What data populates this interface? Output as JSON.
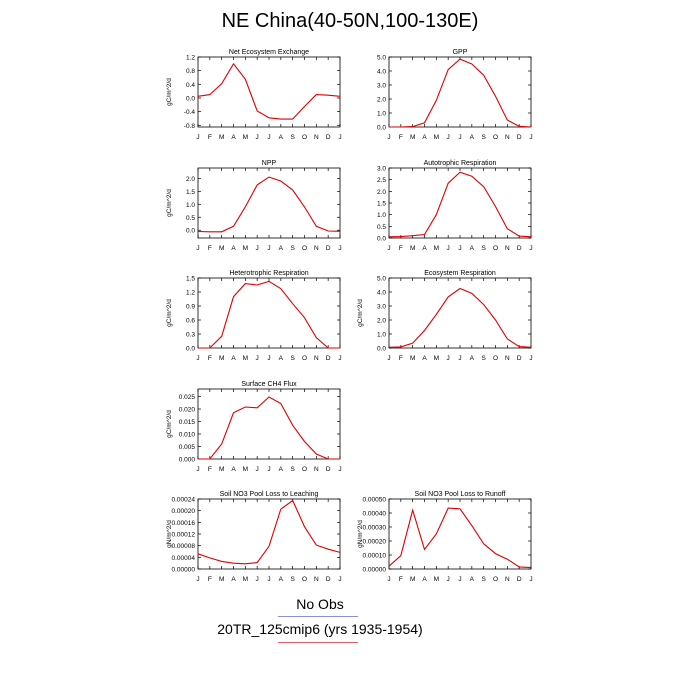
{
  "title": "NE China(40-50N,100-130E)",
  "legend": {
    "obs_label": "No Obs",
    "obs_color": "#8a8fd6",
    "run_label": "20TR_125cmip6 (yrs 1935-1954)",
    "run_color": "#e0606a"
  },
  "series_color": "#e00000",
  "chart_data": [
    {
      "type": "line",
      "title": "Net Ecosystem Exchange",
      "ylabel": "gC/m^2/d",
      "x": [
        "J",
        "F",
        "M",
        "A",
        "M",
        "J",
        "J",
        "A",
        "S",
        "O",
        "N",
        "D",
        "J"
      ],
      "values": [
        0.05,
        0.1,
        0.42,
        1.0,
        0.55,
        -0.38,
        -0.58,
        -0.62,
        -0.62,
        -0.25,
        0.1,
        0.08,
        0.05
      ],
      "ylim": [
        -0.85,
        1.2
      ],
      "yticks": [
        "1.2",
        "0.8",
        "0.4",
        "0.0",
        "-0.4",
        "-0.8"
      ],
      "ytick_values": [
        1.2,
        0.8,
        0.4,
        0.0,
        -0.4,
        -0.8
      ]
    },
    {
      "type": "line",
      "title": "GPP",
      "ylabel": "",
      "x": [
        "J",
        "F",
        "M",
        "A",
        "M",
        "J",
        "J",
        "A",
        "S",
        "O",
        "N",
        "D",
        "J"
      ],
      "values": [
        0.0,
        0.0,
        0.03,
        0.3,
        1.9,
        4.1,
        4.85,
        4.5,
        3.7,
        2.2,
        0.5,
        0.05,
        0.0
      ],
      "ylim": [
        0,
        5.0
      ],
      "yticks": [
        "5.0",
        "4.0",
        "3.0",
        "2.0",
        "1.0",
        "0.0"
      ],
      "ytick_values": [
        5.0,
        4.0,
        3.0,
        2.0,
        1.0,
        0.0
      ]
    },
    {
      "type": "line",
      "title": "NPP",
      "ylabel": "gC/m^2/d",
      "x": [
        "J",
        "F",
        "M",
        "A",
        "M",
        "J",
        "J",
        "A",
        "S",
        "O",
        "N",
        "D",
        "J"
      ],
      "values": [
        -0.05,
        -0.06,
        -0.06,
        0.15,
        0.9,
        1.75,
        2.05,
        1.9,
        1.55,
        0.9,
        0.15,
        -0.03,
        -0.04
      ],
      "ylim": [
        -0.3,
        2.4
      ],
      "yticks": [
        "2.0",
        "1.5",
        "1.0",
        "0.5",
        "0.0"
      ],
      "ytick_values": [
        2.0,
        1.5,
        1.0,
        0.5,
        0.0
      ]
    },
    {
      "type": "line",
      "title": "Autotrophic Respiration",
      "ylabel": "",
      "x": [
        "J",
        "F",
        "M",
        "A",
        "M",
        "J",
        "J",
        "A",
        "S",
        "O",
        "N",
        "D",
        "J"
      ],
      "values": [
        0.05,
        0.06,
        0.1,
        0.15,
        1.0,
        2.35,
        2.82,
        2.65,
        2.2,
        1.35,
        0.4,
        0.08,
        0.05
      ],
      "ylim": [
        0,
        3.0
      ],
      "yticks": [
        "3.0",
        "2.5",
        "2.0",
        "1.5",
        "1.0",
        "0.5",
        "0.0"
      ],
      "ytick_values": [
        3.0,
        2.5,
        2.0,
        1.5,
        1.0,
        0.5,
        0.0
      ]
    },
    {
      "type": "line",
      "title": "Heterotrophic Respiration",
      "ylabel": "gC/m^2/d",
      "x": [
        "J",
        "F",
        "M",
        "A",
        "M",
        "J",
        "J",
        "A",
        "S",
        "O",
        "N",
        "D",
        "J"
      ],
      "values": [
        0.0,
        0.0,
        0.25,
        1.1,
        1.38,
        1.35,
        1.43,
        1.27,
        0.95,
        0.65,
        0.22,
        0.0,
        0.0
      ],
      "ylim": [
        0,
        1.5
      ],
      "yticks": [
        "1.5",
        "1.2",
        "0.9",
        "0.6",
        "0.3",
        "0.0"
      ],
      "ytick_values": [
        1.5,
        1.2,
        0.9,
        0.6,
        0.3,
        0.0
      ]
    },
    {
      "type": "line",
      "title": "Ecosystem Respiration",
      "ylabel": "gC/m^2/d",
      "x": [
        "J",
        "F",
        "M",
        "A",
        "M",
        "J",
        "J",
        "A",
        "S",
        "O",
        "N",
        "D",
        "J"
      ],
      "values": [
        0.05,
        0.08,
        0.35,
        1.25,
        2.4,
        3.65,
        4.25,
        3.9,
        3.1,
        2.0,
        0.65,
        0.1,
        0.05
      ],
      "ylim": [
        0,
        5.0
      ],
      "yticks": [
        "5.0",
        "4.0",
        "3.0",
        "2.0",
        "1.0",
        "0.0"
      ],
      "ytick_values": [
        5.0,
        4.0,
        3.0,
        2.0,
        1.0,
        0.0
      ]
    },
    {
      "type": "line",
      "title": "Surface CH4 Flux",
      "ylabel": "gC/m^2/d",
      "x": [
        "J",
        "F",
        "M",
        "A",
        "M",
        "J",
        "J",
        "A",
        "S",
        "O",
        "N",
        "D",
        "J"
      ],
      "values": [
        0.0,
        0.0,
        0.006,
        0.0185,
        0.0208,
        0.0205,
        0.0248,
        0.0222,
        0.0135,
        0.007,
        0.002,
        0.0,
        0.0
      ],
      "ylim": [
        0,
        0.028
      ],
      "yticks": [
        "0.025",
        "0.020",
        "0.015",
        "0.010",
        "0.005",
        "0.000"
      ],
      "ytick_values": [
        0.025,
        0.02,
        0.015,
        0.01,
        0.005,
        0.0
      ]
    },
    {
      "type": "line",
      "title": "Soil NO3 Pool Loss to Leaching",
      "ylabel": "gN/m^2/d",
      "x": [
        "J",
        "F",
        "M",
        "A",
        "M",
        "J",
        "J",
        "A",
        "S",
        "O",
        "N",
        "D",
        "J"
      ],
      "values": [
        5.2e-05,
        3.8e-05,
        2.6e-05,
        2e-05,
        1.8e-05,
        2.2e-05,
        7.8e-05,
        0.000205,
        0.000235,
        0.000145,
        8.2e-05,
        6.8e-05,
        5.7e-05
      ],
      "ylim": [
        0,
        0.00024
      ],
      "yticks": [
        "0.00024",
        "0.00020",
        "0.00016",
        "0.00012",
        "0.00008",
        "0.00004",
        "0.00000"
      ],
      "ytick_values": [
        0.00024,
        0.0002,
        0.00016,
        0.00012,
        8e-05,
        4e-05,
        0.0
      ]
    },
    {
      "type": "line",
      "title": "Soil NO3 Pool Loss to Runoff",
      "ylabel": "gN/m^2/d",
      "x": [
        "J",
        "F",
        "M",
        "A",
        "M",
        "J",
        "J",
        "A",
        "S",
        "O",
        "N",
        "D",
        "J"
      ],
      "values": [
        2e-05,
        9.5e-05,
        0.00042,
        0.00014,
        0.00025,
        0.000435,
        0.00043,
        0.00031,
        0.00018,
        0.00011,
        7e-05,
        1.5e-05,
        1e-05
      ],
      "ylim": [
        0,
        0.0005
      ],
      "yticks": [
        "0.00050",
        "0.00040",
        "0.00030",
        "0.00020",
        "0.00010",
        "0.00000"
      ],
      "ytick_values": [
        0.0005,
        0.0004,
        0.0003,
        0.0002,
        0.0001,
        0.0
      ]
    }
  ]
}
